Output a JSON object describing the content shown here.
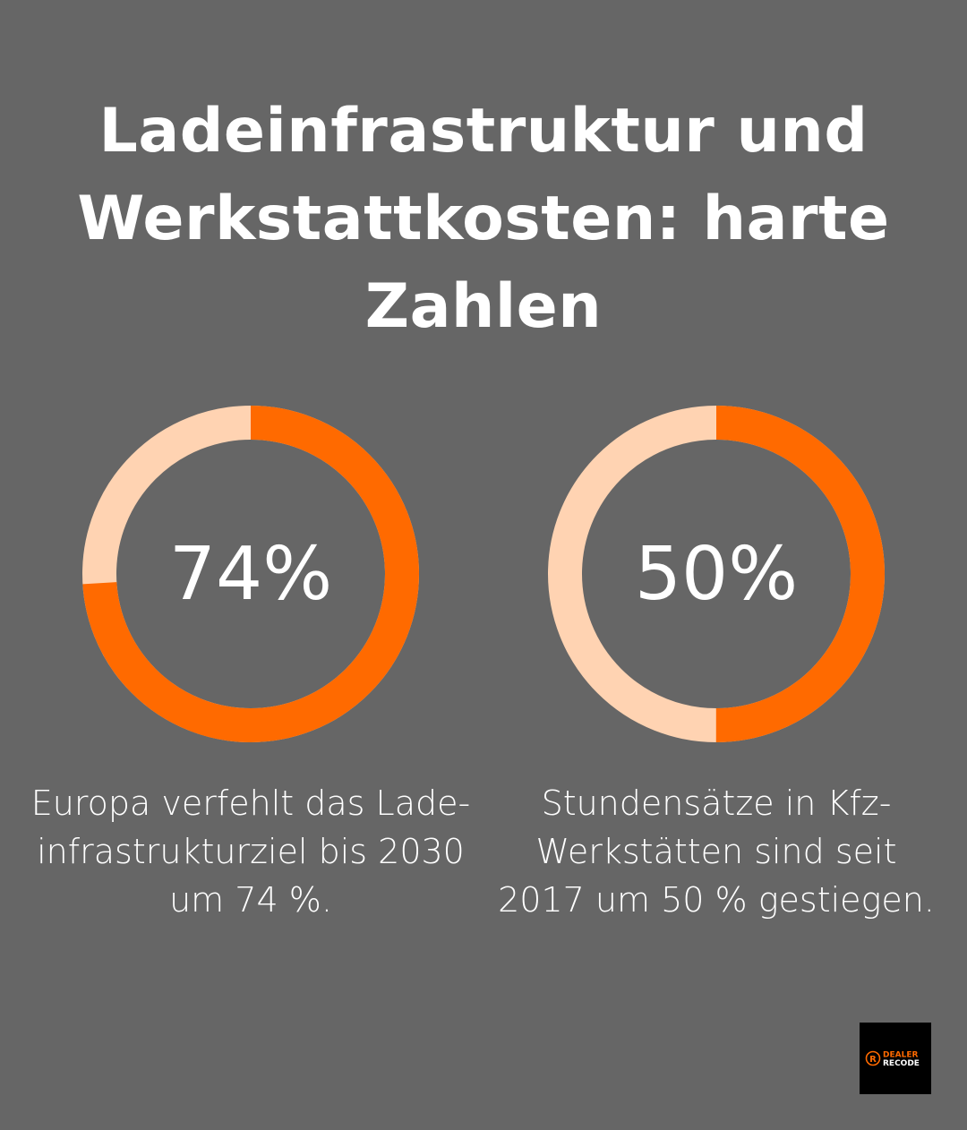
{
  "title": "Ladeinfrastruktur und Werkstattkosten: harte Zahlen",
  "colors": {
    "background": "#666666",
    "accent": "#FF6A00",
    "remainder": "#FFD3B2",
    "text": "#FFFFFF"
  },
  "chart_data": [
    {
      "type": "pie",
      "variant": "donut",
      "value": 74,
      "max": 100,
      "label": "74%",
      "caption": "Europa verfehlt das Lade-infrastrukturziel bis 2030 um 74 %."
    },
    {
      "type": "pie",
      "variant": "donut",
      "value": 50,
      "max": 100,
      "label": "50%",
      "caption": "Stundensätze in Kfz-Werkstätten sind seit 2017 um 50 % gestiegen."
    }
  ],
  "logo": {
    "text": "DEALER RECODE"
  }
}
